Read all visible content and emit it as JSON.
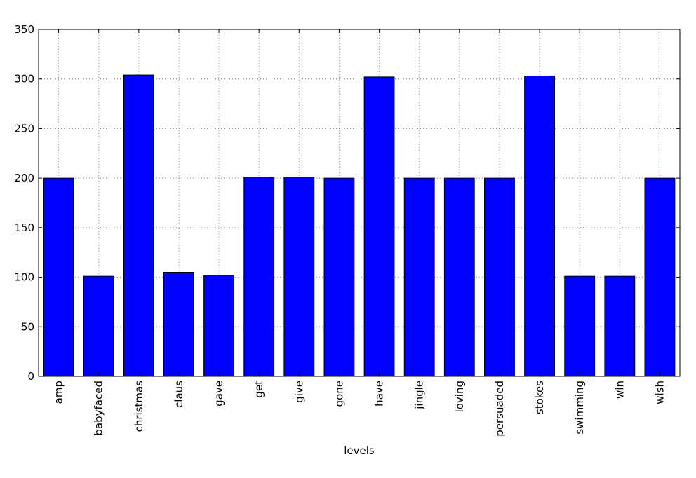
{
  "chart_data": {
    "type": "bar",
    "title": "",
    "xlabel": "levels",
    "ylabel": "",
    "categories": [
      "amp",
      "babyfaced",
      "christmas",
      "claus",
      "gave",
      "get",
      "give",
      "gone",
      "have",
      "jingle",
      "loving",
      "persuaded",
      "stokes",
      "swimming",
      "win",
      "wish"
    ],
    "values": [
      200,
      101,
      304,
      105,
      102,
      201,
      201,
      200,
      302,
      200,
      200,
      200,
      303,
      101,
      101,
      200
    ],
    "ylim": [
      0,
      350
    ],
    "yticks": [
      0,
      50,
      100,
      150,
      200,
      250,
      300,
      350
    ],
    "grid": true,
    "legend": "none",
    "colors": {
      "bar_fill": "#0000ff",
      "bar_edge": "#000000",
      "grid": "#808080",
      "axes": "#000000"
    }
  }
}
